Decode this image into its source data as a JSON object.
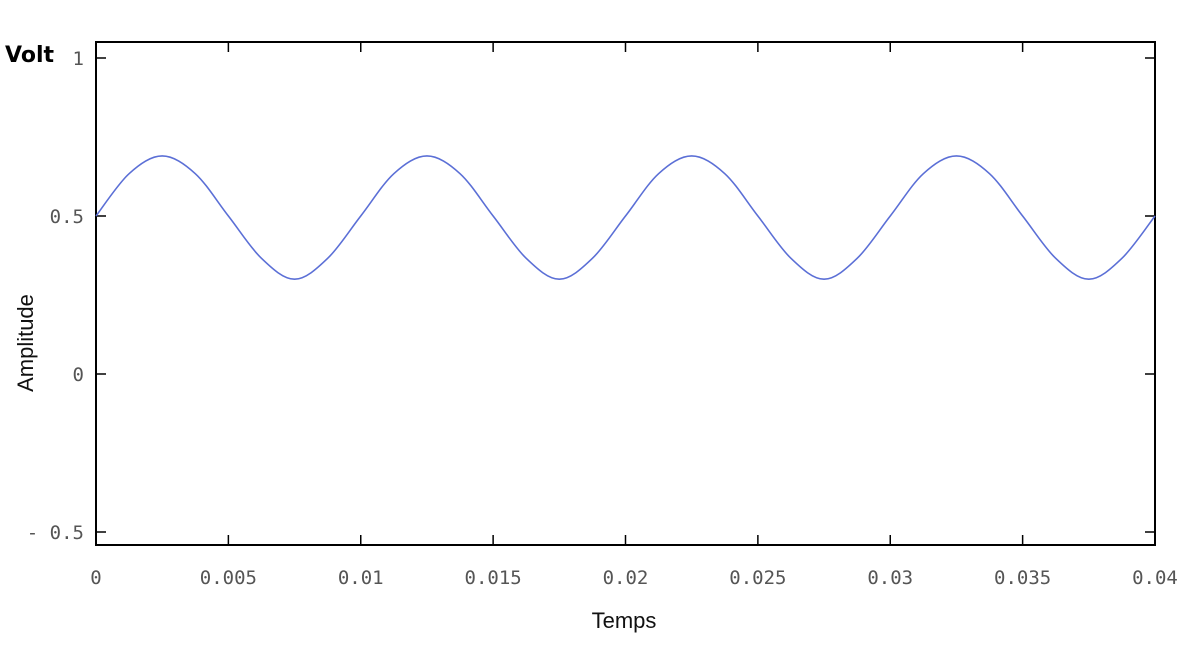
{
  "chart_data": {
    "type": "line",
    "title": "",
    "xlabel": "Temps",
    "ylabel": "Amplitude",
    "unit_label": "Volt",
    "xlim": [
      0,
      0.04
    ],
    "ylim": [
      -0.55,
      1.05
    ],
    "grid": false,
    "x_ticks": [
      {
        "value": 0,
        "label": "0"
      },
      {
        "value": 0.005,
        "label": "0.005"
      },
      {
        "value": 0.01,
        "label": "0.01"
      },
      {
        "value": 0.015,
        "label": "0.015"
      },
      {
        "value": 0.02,
        "label": "0.02"
      },
      {
        "value": 0.025,
        "label": "0.025"
      },
      {
        "value": 0.03,
        "label": "0.03"
      },
      {
        "value": 0.035,
        "label": "0.035"
      },
      {
        "value": 0.04,
        "label": "0.04"
      }
    ],
    "y_ticks": [
      {
        "value": 1,
        "label": "1"
      },
      {
        "value": 0.5,
        "label": "0.5"
      },
      {
        "value": 0,
        "label": "0"
      },
      {
        "value": -0.5,
        "label": "- 0.5"
      }
    ],
    "series": [
      {
        "color": "#5b6fd6",
        "x": [
          0,
          0.00125,
          0.0025,
          0.00375,
          0.005,
          0.00625,
          0.0075,
          0.00875,
          0.01,
          0.01125,
          0.0125,
          0.01375,
          0.015,
          0.01625,
          0.0175,
          0.01875,
          0.02,
          0.02125,
          0.0225,
          0.02375,
          0.025,
          0.02625,
          0.0275,
          0.02875,
          0.03,
          0.03125,
          0.0325,
          0.03375,
          0.035,
          0.03625,
          0.0375,
          0.03875,
          0.04
        ],
        "y": [
          0.5,
          0.634,
          0.69,
          0.634,
          0.5,
          0.366,
          0.3,
          0.366,
          0.5,
          0.634,
          0.69,
          0.634,
          0.5,
          0.366,
          0.3,
          0.366,
          0.5,
          0.634,
          0.69,
          0.634,
          0.5,
          0.366,
          0.3,
          0.366,
          0.5,
          0.634,
          0.69,
          0.634,
          0.5,
          0.366,
          0.3,
          0.366,
          0.5
        ]
      }
    ]
  }
}
